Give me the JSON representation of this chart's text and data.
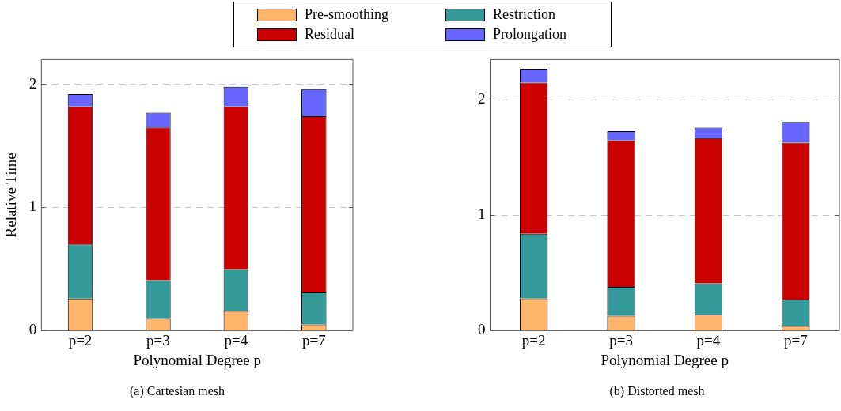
{
  "chart_data": [
    {
      "type": "bar",
      "stacked": true,
      "xlabel": "Polynomial Degree p",
      "ylabel": "Relative Time",
      "annotations": [
        "(a) Cartesian mesh"
      ],
      "categories": [
        "p=2",
        "p=3",
        "p=4",
        "p=7"
      ],
      "ylim": [
        0,
        2.2
      ],
      "yticks": [
        0,
        1,
        2
      ],
      "grid": "y",
      "legend": "top",
      "series": [
        {
          "name": "Pre-smoothing",
          "color": "#ffb56b",
          "values": [
            0.26,
            0.1,
            0.16,
            0.05
          ]
        },
        {
          "name": "Restriction",
          "color": "#339a99",
          "values": [
            0.44,
            0.31,
            0.34,
            0.26
          ]
        },
        {
          "name": "Residual",
          "color": "#cc0000",
          "values": [
            1.12,
            1.24,
            1.32,
            1.43
          ]
        },
        {
          "name": "Prolongation",
          "color": "#6666ff",
          "values": [
            0.1,
            0.12,
            0.16,
            0.22
          ]
        }
      ]
    },
    {
      "type": "bar",
      "stacked": true,
      "xlabel": "Polynomial Degree p",
      "annotations": [
        "(b) Distorted mesh"
      ],
      "categories": [
        "p=2",
        "p=3",
        "p=4",
        "p=7"
      ],
      "ylim": [
        0,
        2.35
      ],
      "yticks": [
        0,
        1,
        2
      ],
      "grid": "y",
      "series": [
        {
          "color": "#ffb56b",
          "values": [
            0.28,
            0.13,
            0.14,
            0.04
          ]
        },
        {
          "color": "#339a99",
          "values": [
            0.56,
            0.25,
            0.27,
            0.23
          ]
        },
        {
          "color": "#cc0000",
          "values": [
            1.31,
            1.27,
            1.26,
            1.36
          ]
        },
        {
          "color": "#6666ff",
          "values": [
            0.12,
            0.08,
            0.09,
            0.18
          ]
        }
      ]
    }
  ]
}
